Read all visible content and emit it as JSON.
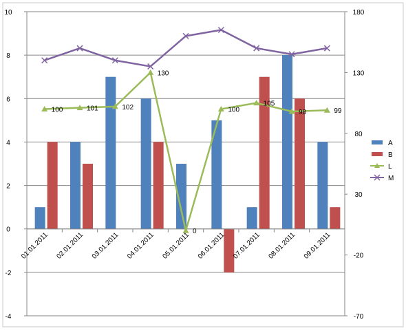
{
  "chart_data": {
    "type": "bar",
    "categories": [
      "01.01.2011",
      "02.01.2011",
      "03.01.2011",
      "04.01.2011",
      "05.01.2011",
      "06.01.2011",
      "07.01.2011",
      "08.01.2011",
      "09.01.2011"
    ],
    "series": [
      {
        "name": "A",
        "type": "bar",
        "axis": "left",
        "color": "#4F81BD",
        "values": [
          1,
          4,
          7,
          6,
          3,
          5,
          1,
          8,
          4
        ]
      },
      {
        "name": "B",
        "type": "bar",
        "axis": "left",
        "color": "#C0504D",
        "values": [
          4,
          3,
          0,
          4,
          0,
          -2,
          7,
          6,
          1
        ]
      },
      {
        "name": "L",
        "type": "line",
        "axis": "right",
        "color": "#9BBB59",
        "marker": "triangle",
        "values": [
          100,
          101,
          102,
          130,
          0,
          100,
          105,
          98,
          99
        ],
        "data_labels": [
          "100",
          "101",
          "102",
          "130",
          "0",
          "100",
          "105",
          "98",
          "99"
        ]
      },
      {
        "name": "M",
        "type": "line",
        "axis": "right",
        "color": "#8064A2",
        "marker": "x",
        "values": [
          140,
          150,
          140,
          135,
          160,
          165,
          150,
          145,
          150
        ]
      }
    ],
    "y_left": {
      "min": -4,
      "max": 10,
      "ticks": [
        "-4",
        "-2",
        "0",
        "2",
        "4",
        "6",
        "8",
        "10"
      ]
    },
    "y_right": {
      "min": -70,
      "max": 180,
      "ticks": [
        "-70",
        "-20",
        "30",
        "80",
        "130",
        "180"
      ]
    },
    "title": "",
    "xlabel": "",
    "ylabel": "",
    "grid": "major horizontal on left axis",
    "legend": {
      "placement": "right",
      "entries": [
        "A",
        "B",
        "L",
        "M"
      ]
    }
  }
}
